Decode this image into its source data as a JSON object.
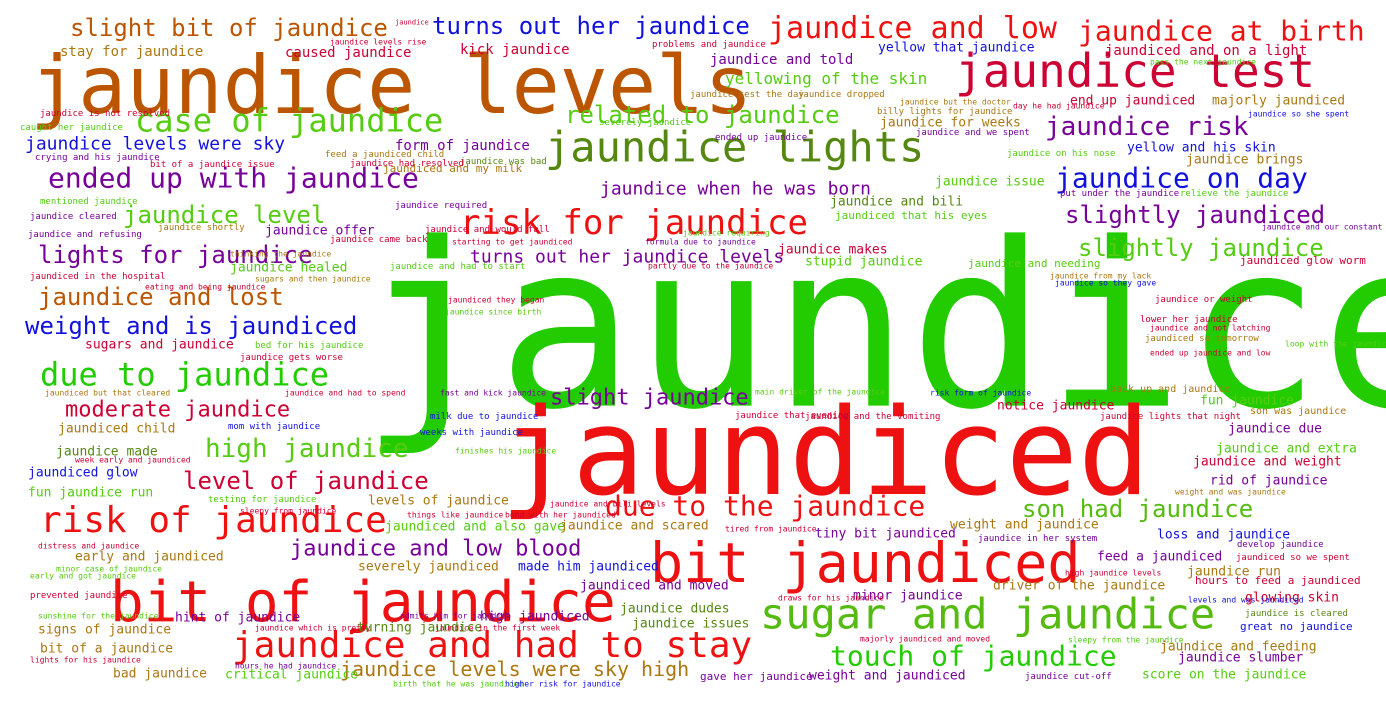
{
  "palette": {
    "green": "#22cc00",
    "red": "#ee1111",
    "orange": "#bb5500",
    "crimson": "#cc0033",
    "blue": "#1111dd",
    "purple": "#770099",
    "olive": "#558811",
    "gold": "#aa7711",
    "lime": "#55bb11"
  },
  "words": [
    {
      "text": "jaundice",
      "color": "#22cc00"
    },
    {
      "text": "jaundiced",
      "color": "#ee1111"
    },
    {
      "text": "jaundice levels",
      "color": "#bb5500"
    },
    {
      "text": "bit of jaundice",
      "color": "#ee1111"
    },
    {
      "text": "bit jaundiced",
      "color": "#ee1111"
    },
    {
      "text": "jaundice test",
      "color": "#cc0033"
    },
    {
      "text": "jaundice lights",
      "color": "#558811"
    },
    {
      "text": "sugar and jaundice",
      "color": "#55bb11"
    },
    {
      "text": "case of jaundice",
      "color": "#55cc11"
    },
    {
      "text": "risk for jaundice",
      "color": "#ee1111"
    },
    {
      "text": "jaundice and had to stay",
      "color": "#ee1111"
    },
    {
      "text": "risk of jaundice",
      "color": "#ee1111"
    },
    {
      "text": "due to jaundice",
      "color": "#22cc00"
    },
    {
      "text": "due to the jaundice",
      "color": "#ee1111"
    },
    {
      "text": "jaundice and low",
      "color": "#ee1111"
    },
    {
      "text": "jaundice at birth",
      "color": "#ee1111"
    },
    {
      "text": "ended up with jaundice",
      "color": "#770099"
    },
    {
      "text": "jaundice on day",
      "color": "#1111dd"
    },
    {
      "text": "touch of jaundice",
      "color": "#22cc00"
    },
    {
      "text": "slight bit of jaundice",
      "color": "#bb5500"
    },
    {
      "text": "turns out her jaundice",
      "color": "#1111dd"
    },
    {
      "text": "jaundice risk",
      "color": "#770099"
    },
    {
      "text": "related to jaundice",
      "color": "#55cc11"
    },
    {
      "text": "jaundice level",
      "color": "#55cc11"
    },
    {
      "text": "lights for jaundice",
      "color": "#770099"
    },
    {
      "text": "jaundice and lost",
      "color": "#bb5500"
    },
    {
      "text": "weight and is jaundiced",
      "color": "#1111dd"
    },
    {
      "text": "slightly jaundiced",
      "color": "#770099"
    },
    {
      "text": "slightly jaundice",
      "color": "#55cc11"
    },
    {
      "text": "son had jaundice",
      "color": "#55bb11"
    },
    {
      "text": "slight jaundice",
      "color": "#770099"
    },
    {
      "text": "high jaundice",
      "color": "#55cc11"
    },
    {
      "text": "moderate jaundice",
      "color": "#cc0033"
    },
    {
      "text": "level of jaundice",
      "color": "#cc0033"
    },
    {
      "text": "jaundice and low blood",
      "color": "#770099"
    },
    {
      "text": "jaundice levels were sky high",
      "color": "#aa7711"
    },
    {
      "text": "jaundice when he was born",
      "color": "#770099"
    },
    {
      "text": "turns out her jaundice levels",
      "color": "#770099"
    },
    {
      "text": "jaundice levels were sky",
      "color": "#1111dd"
    },
    {
      "text": "yellowing of the skin",
      "color": "#55cc11"
    },
    {
      "text": "jaundiced and on a light",
      "color": "#cc0033"
    },
    {
      "text": "jaundice and told",
      "color": "#770099"
    },
    {
      "text": "form of jaundice",
      "color": "#770099"
    },
    {
      "text": "kick jaundice",
      "color": "#cc0033"
    },
    {
      "text": "caused jaundice",
      "color": "#cc0033"
    },
    {
      "text": "stay for jaundice",
      "color": "#aa7711"
    },
    {
      "text": "yellow that jaundice",
      "color": "#1111dd"
    },
    {
      "text": "end up jaundiced",
      "color": "#cc0033"
    },
    {
      "text": "majorly jaundiced",
      "color": "#aa7711"
    },
    {
      "text": "jaundice for weeks",
      "color": "#aa7711"
    },
    {
      "text": "yellow and his skin",
      "color": "#1111dd"
    },
    {
      "text": "jaundice brings",
      "color": "#aa7711"
    },
    {
      "text": "jaundice issue",
      "color": "#55cc11"
    },
    {
      "text": "jaundice and bili",
      "color": "#558811"
    },
    {
      "text": "jaundice makes",
      "color": "#cc0033"
    },
    {
      "text": "stupid jaundice",
      "color": "#55cc11"
    },
    {
      "text": "jaundice healed",
      "color": "#55cc11"
    },
    {
      "text": "jaundice offer",
      "color": "#770099"
    },
    {
      "text": "sugars and jaundice",
      "color": "#cc0033"
    },
    {
      "text": "jaundiced child",
      "color": "#aa7711"
    },
    {
      "text": "jaundice made",
      "color": "#558811"
    },
    {
      "text": "jaundiced glow",
      "color": "#1111dd"
    },
    {
      "text": "fun jaundice run",
      "color": "#55cc11"
    },
    {
      "text": "levels of jaundice",
      "color": "#aa7711"
    },
    {
      "text": "early and jaundiced",
      "color": "#aa7711"
    },
    {
      "text": "jaundiced and also gave",
      "color": "#55cc11"
    },
    {
      "text": "jaundice and scared",
      "color": "#aa7711"
    },
    {
      "text": "weight and jaundice",
      "color": "#aa7711"
    },
    {
      "text": "tiny bit jaundiced",
      "color": "#770099"
    },
    {
      "text": "notice jaundice",
      "color": "#cc0033"
    },
    {
      "text": "fun jaundice",
      "color": "#55cc11"
    },
    {
      "text": "jaundice due",
      "color": "#770099"
    },
    {
      "text": "jaundice and extra",
      "color": "#55cc11"
    },
    {
      "text": "jaundice and weight",
      "color": "#cc0033"
    },
    {
      "text": "rid of jaundice",
      "color": "#770099"
    },
    {
      "text": "loss and jaundice",
      "color": "#1111dd"
    },
    {
      "text": "feed a jaundiced",
      "color": "#770099"
    },
    {
      "text": "jaundice run",
      "color": "#aa7711"
    },
    {
      "text": "driver of the jaundice",
      "color": "#aa7711"
    },
    {
      "text": "glowing skin",
      "color": "#cc0033"
    },
    {
      "text": "minor jaundice",
      "color": "#770099"
    },
    {
      "text": "jaundiced and moved",
      "color": "#770099"
    },
    {
      "text": "jaundice dudes",
      "color": "#558811"
    },
    {
      "text": "jaundice issues",
      "color": "#558811"
    },
    {
      "text": "made him jaundiced",
      "color": "#1111dd"
    },
    {
      "text": "severely jaundiced",
      "color": "#aa7711"
    },
    {
      "text": "hint of jaundice",
      "color": "#770099"
    },
    {
      "text": "high jaundiced",
      "color": "#770099"
    },
    {
      "text": "signs of jaundice",
      "color": "#aa7711"
    },
    {
      "text": "bit of a jaundice",
      "color": "#aa7711"
    },
    {
      "text": "bad jaundice",
      "color": "#aa7711"
    },
    {
      "text": "critical jaundice",
      "color": "#55cc11"
    },
    {
      "text": "turning jaundice",
      "color": "#558811"
    },
    {
      "text": "jaundice and feeding",
      "color": "#aa7711"
    },
    {
      "text": "jaundice slumber",
      "color": "#770099"
    },
    {
      "text": "score on the jaundice",
      "color": "#55cc11"
    },
    {
      "text": "weight and jaundiced",
      "color": "#770099"
    },
    {
      "text": "gave her jaundice",
      "color": "#770099"
    },
    {
      "text": "jaundice cut-off",
      "color": "#770099"
    },
    {
      "text": "great no jaundice",
      "color": "#1111dd"
    },
    {
      "text": "jaundice is cleared",
      "color": "#558811"
    },
    {
      "text": "hours to feed a jaundiced",
      "color": "#cc0033"
    },
    {
      "text": "develop jaundice",
      "color": "#770099"
    },
    {
      "text": "jaundiced so we spent",
      "color": "#cc0033"
    },
    {
      "text": "jaundiced and my milk",
      "color": "#aa7711"
    },
    {
      "text": "jaundiced that his eyes",
      "color": "#55cc11"
    },
    {
      "text": "jaundice and needing",
      "color": "#55cc11"
    },
    {
      "text": "jaundiced glow worm",
      "color": "#cc0033"
    },
    {
      "text": "jaundice on his nose",
      "color": "#55cc11"
    },
    {
      "text": "jaundice and we spent",
      "color": "#770099"
    },
    {
      "text": "relieve the jaundice",
      "color": "#55cc11"
    },
    {
      "text": "put under the jaundice",
      "color": "#770099"
    },
    {
      "text": "jaundice test the day",
      "color": "#aa7711"
    },
    {
      "text": "jaundice dropped",
      "color": "#aa7711"
    },
    {
      "text": "jaundice was bad",
      "color": "#558811"
    },
    {
      "text": "feed a jaundiced child",
      "color": "#aa7711"
    },
    {
      "text": "severely jaundice",
      "color": "#55cc11"
    },
    {
      "text": "ended up jaundice",
      "color": "#770099"
    },
    {
      "text": "jaundice required",
      "color": "#770099"
    },
    {
      "text": "mom with jaundice",
      "color": "#1111dd"
    },
    {
      "text": "bed for his jaundice",
      "color": "#55cc11"
    },
    {
      "text": "jaundice gets worse",
      "color": "#cc0033"
    },
    {
      "text": "jaundice shortly",
      "color": "#aa7711"
    },
    {
      "text": "jaundiced in the hospital",
      "color": "#cc0033"
    },
    {
      "text": "jaundice and refusing",
      "color": "#770099"
    },
    {
      "text": "jaundice cleared",
      "color": "#770099"
    },
    {
      "text": "mentioned jaundice",
      "color": "#55cc11"
    },
    {
      "text": "caught her jaundice",
      "color": "#55cc11"
    },
    {
      "text": "crying and his jaundice",
      "color": "#770099"
    },
    {
      "text": "bit of a jaundice issue",
      "color": "#cc0033"
    },
    {
      "text": "jaundice had resolved",
      "color": "#cc0033"
    },
    {
      "text": "jaundice is not resolved",
      "color": "#cc0033"
    },
    {
      "text": "jaundice levels rise",
      "color": "#cc0033"
    },
    {
      "text": "problems and jaundice",
      "color": "#cc0033"
    },
    {
      "text": "pass the next jaundice",
      "color": "#55cc11"
    },
    {
      "text": "day he had jaundice",
      "color": "#cc0033"
    },
    {
      "text": "billy lights for jaundice",
      "color": "#aa7711"
    },
    {
      "text": "jaundice but the doctor",
      "color": "#aa7711"
    },
    {
      "text": "jaundice so she spent",
      "color": "#1111dd"
    },
    {
      "text": "jaundiced but that cleared",
      "color": "#aa7711"
    },
    {
      "text": "fast and kick jaundice",
      "color": "#770099"
    },
    {
      "text": "milk due to jaundice",
      "color": "#1111dd"
    },
    {
      "text": "weeks with jaundice",
      "color": "#1111dd"
    },
    {
      "text": "finishes his jaundice",
      "color": "#55cc11"
    },
    {
      "text": "jaundice that evening",
      "color": "#cc0033"
    },
    {
      "text": "jaundice and the vomiting",
      "color": "#cc0033"
    },
    {
      "text": "jaundice lights that night",
      "color": "#cc0033"
    },
    {
      "text": "son was jaundice",
      "color": "#aa7711"
    },
    {
      "text": "back up and jaundice",
      "color": "#aa7711"
    },
    {
      "text": "risk form of jaundice",
      "color": "#1111dd"
    },
    {
      "text": "main driver of the jaundice",
      "color": "#55cc11"
    },
    {
      "text": "jaundice or weight",
      "color": "#cc0033"
    },
    {
      "text": "lower her jaundice",
      "color": "#cc0033"
    },
    {
      "text": "jaundice and not latching",
      "color": "#cc0033"
    },
    {
      "text": "jaundiced so tomorrow",
      "color": "#aa7711"
    },
    {
      "text": "loop with the jaundice",
      "color": "#55cc11"
    },
    {
      "text": "ended up jaundice and low",
      "color": "#cc0033"
    },
    {
      "text": "jaundice from my lack",
      "color": "#aa7711"
    },
    {
      "text": "jaundice so they gave",
      "color": "#1111dd"
    },
    {
      "text": "jaundiced they began",
      "color": "#cc0033"
    },
    {
      "text": "jaundice since birth",
      "color": "#55cc11"
    },
    {
      "text": "starting to get jaundiced",
      "color": "#cc0033"
    },
    {
      "text": "formula due to jaundice",
      "color": "#770099"
    },
    {
      "text": "thinking the jaundice",
      "color": "#aa7711"
    },
    {
      "text": "sugars and then jaundice",
      "color": "#aa7711"
    },
    {
      "text": "jaundice and had to start",
      "color": "#55cc11"
    },
    {
      "text": "partly due to the jaundice",
      "color": "#cc0033"
    },
    {
      "text": "eating and being jaundice",
      "color": "#cc0033"
    },
    {
      "text": "jaundice came back",
      "color": "#cc0033"
    },
    {
      "text": "jaundice and would fall",
      "color": "#cc0033"
    },
    {
      "text": "jaundice requiring",
      "color": "#55cc11"
    },
    {
      "text": "jaundice and our constant",
      "color": "#770099"
    },
    {
      "text": "jaundice and had to spend",
      "color": "#cc0033"
    },
    {
      "text": "jaundice and bili levels",
      "color": "#cc0033"
    },
    {
      "text": "bond with her jaundiced",
      "color": "#cc0033"
    },
    {
      "text": "things like jaundice",
      "color": "#cc0033"
    },
    {
      "text": "sleepy from jaundice",
      "color": "#cc0033"
    },
    {
      "text": "testing for jaundice",
      "color": "#55cc11"
    },
    {
      "text": "tired from jaundice",
      "color": "#cc0033"
    },
    {
      "text": "jaundice in her system",
      "color": "#770099"
    },
    {
      "text": "distress and jaundice",
      "color": "#cc0033"
    },
    {
      "text": "minor case of jaundice",
      "color": "#55cc11"
    },
    {
      "text": "early and got jaundice",
      "color": "#55cc11"
    },
    {
      "text": "prevented jaundice",
      "color": "#cc0033"
    },
    {
      "text": "sunshine for the jaundice",
      "color": "#55cc11"
    },
    {
      "text": "jaundice which is pretty",
      "color": "#cc0033"
    },
    {
      "text": "admits him for jaundice",
      "color": "#770099"
    },
    {
      "text": "jaundice in the first week",
      "color": "#cc0033"
    },
    {
      "text": "draws for his jaundice",
      "color": "#cc0033"
    },
    {
      "text": "levels and was jaundiced",
      "color": "#1111dd"
    },
    {
      "text": "high jaundice levels",
      "color": "#cc0033"
    },
    {
      "text": "weight and was jaundice",
      "color": "#aa7711"
    },
    {
      "text": "majorly jaundiced and moved",
      "color": "#cc0033"
    },
    {
      "text": "sleepy from the jaundice",
      "color": "#55cc11"
    },
    {
      "text": "lights for his jaundice",
      "color": "#cc0033"
    },
    {
      "text": "hours he had jaundice",
      "color": "#770099"
    },
    {
      "text": "birth that he was jaundiced",
      "color": "#55cc11"
    },
    {
      "text": "higher risk for jaundice",
      "color": "#1111dd"
    },
    {
      "text": "week early and jaundiced",
      "color": "#cc0033"
    },
    {
      "text": "jaundice",
      "color": "#cc0033"
    }
  ]
}
